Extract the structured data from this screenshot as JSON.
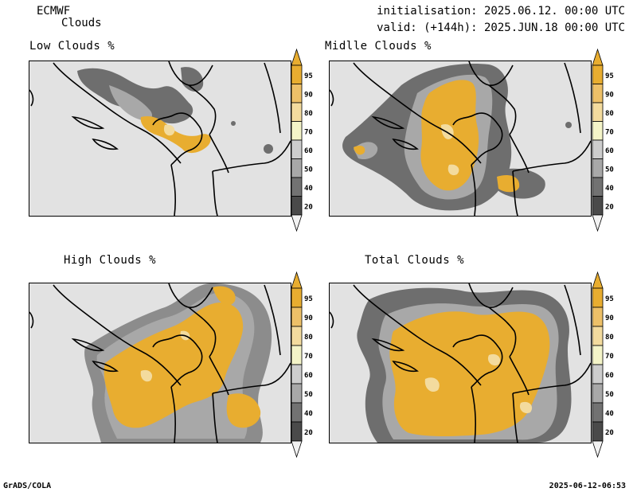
{
  "header": {
    "model": "ECMWF",
    "product": "Clouds",
    "initialisation": "initialisation: 2025.06.12. 00:00 UTC",
    "valid": "valid: (+144h): 2025.JUN.18 00:00 UTC"
  },
  "panels": [
    {
      "title": "Low Clouds %"
    },
    {
      "title": "Midlle Clouds %"
    },
    {
      "title": "High Clouds %"
    },
    {
      "title": "Total Clouds %"
    }
  ],
  "colorbar": {
    "labels": [
      "95",
      "90",
      "80",
      "70",
      "60",
      "50",
      "40",
      "20"
    ],
    "colors": [
      "#e8ad30",
      "#edc068",
      "#f3db9e",
      "#f4f4c8",
      "#cdcdcd",
      "#a8a8a8",
      "#727272",
      "#4a4a4a"
    ],
    "tip_top": "#e8ad30",
    "tip_bottom": "#f2f2f2"
  },
  "footer": {
    "left": "GrADS/COLA",
    "right": "2025-06-12-06:53"
  }
}
